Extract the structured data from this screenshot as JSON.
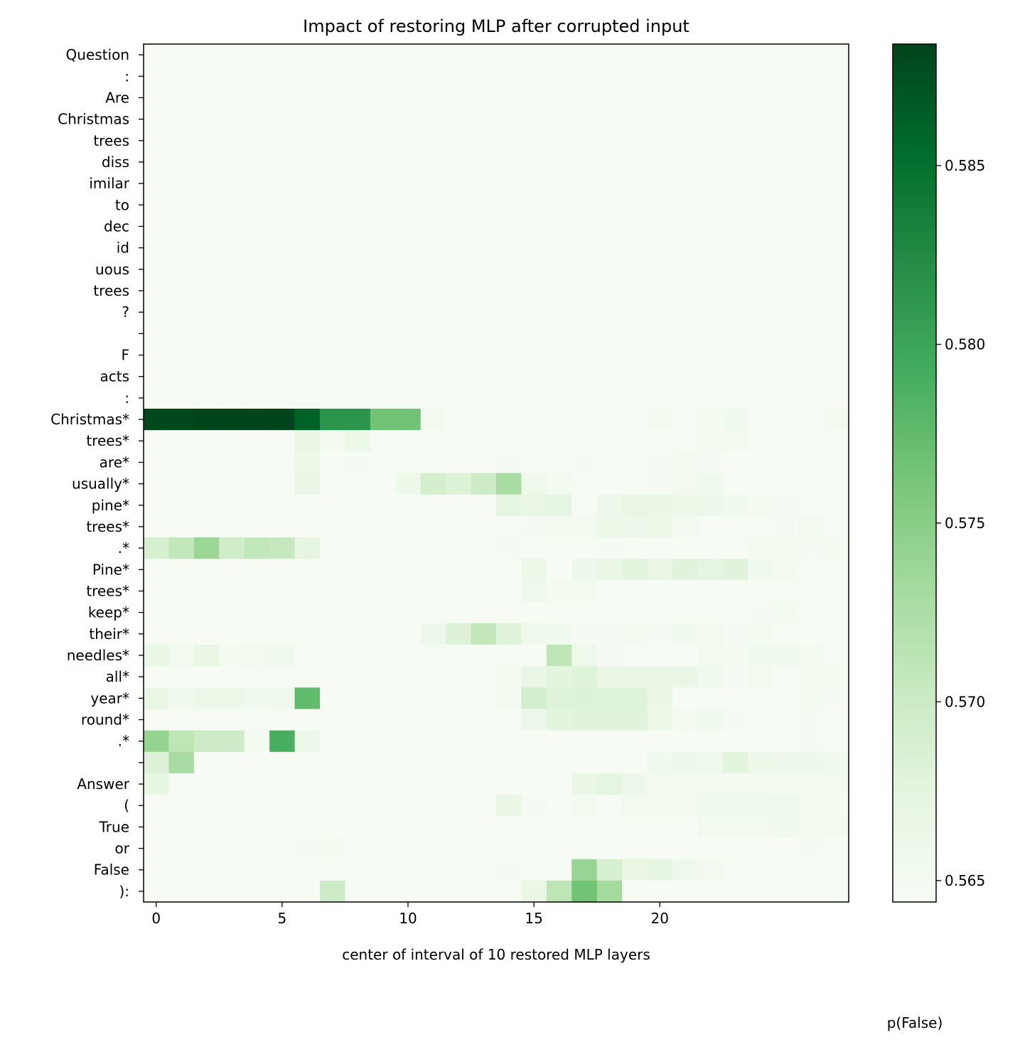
{
  "chart_data": {
    "type": "heatmap",
    "title": "Impact of restoring MLP after corrupted input",
    "xlabel": "center of interval of 10 restored MLP layers",
    "ylabel": "",
    "colorbar_label": "p(False)",
    "colormap": "Greens",
    "color_low": "#f7fcf5",
    "color_high": "#00441b",
    "vmin": 0.5644,
    "vmax": 0.5884,
    "colorbar_ticks": [
      "0.565",
      "0.570",
      "0.575",
      "0.580",
      "0.585"
    ],
    "x": [
      0,
      1,
      2,
      3,
      4,
      5,
      6,
      7,
      8,
      9,
      10,
      11,
      12,
      13,
      14,
      15,
      16,
      17,
      18,
      19,
      20,
      21,
      22,
      23,
      24,
      25,
      26,
      27
    ],
    "xticks": [
      0,
      5,
      10,
      15,
      20
    ],
    "tokens": [
      "Question",
      ":",
      "Are",
      "Christmas",
      "trees",
      "diss",
      "imilar",
      "to",
      "dec",
      "id",
      "uous",
      "trees",
      "?",
      "",
      "F",
      "acts",
      ":",
      "Christmas*",
      "trees*",
      "are*",
      "usually*",
      "pine*",
      "trees*",
      ".*",
      "Pine*",
      "trees*",
      "keep*",
      "their*",
      "needles*",
      "all*",
      "year*",
      "round*",
      ".*",
      "",
      "Answer",
      "(",
      "True",
      "or",
      "False",
      "):"
    ],
    "values": [
      [
        0.5645,
        0.5645,
        0.5645,
        0.5645,
        0.5645,
        0.5645,
        0.5645,
        0.5645,
        0.5645,
        0.5645,
        0.5645,
        0.5645,
        0.5645,
        0.5645,
        0.5645,
        0.5645,
        0.5645,
        0.5645,
        0.5645,
        0.5645,
        0.5645,
        0.5645,
        0.5645,
        0.5645,
        0.5645,
        0.5645,
        0.5645,
        0.5645
      ],
      [
        0.5645,
        0.5645,
        0.5645,
        0.5645,
        0.5645,
        0.5645,
        0.5645,
        0.5645,
        0.5645,
        0.5645,
        0.5645,
        0.5645,
        0.5645,
        0.5645,
        0.5645,
        0.5645,
        0.5645,
        0.5645,
        0.5645,
        0.5645,
        0.5645,
        0.5645,
        0.5645,
        0.5645,
        0.5645,
        0.5645,
        0.5645,
        0.5645
      ],
      [
        0.5645,
        0.5645,
        0.5645,
        0.5645,
        0.5645,
        0.5645,
        0.5645,
        0.5645,
        0.5645,
        0.5645,
        0.5645,
        0.5645,
        0.5645,
        0.5645,
        0.5645,
        0.5645,
        0.5645,
        0.5645,
        0.5645,
        0.5645,
        0.5645,
        0.5645,
        0.5645,
        0.5645,
        0.5645,
        0.5645,
        0.5645,
        0.5645
      ],
      [
        0.5645,
        0.5645,
        0.5645,
        0.5645,
        0.5645,
        0.5645,
        0.5645,
        0.5645,
        0.5645,
        0.5645,
        0.5645,
        0.5645,
        0.5645,
        0.5645,
        0.5645,
        0.5645,
        0.5645,
        0.5645,
        0.5645,
        0.5645,
        0.5645,
        0.5645,
        0.5645,
        0.5645,
        0.5645,
        0.5645,
        0.5645,
        0.5645
      ],
      [
        0.5645,
        0.5645,
        0.5645,
        0.5645,
        0.5645,
        0.5645,
        0.5645,
        0.5645,
        0.5645,
        0.5645,
        0.5645,
        0.5645,
        0.5645,
        0.5645,
        0.5645,
        0.5645,
        0.5645,
        0.5645,
        0.5645,
        0.5645,
        0.5645,
        0.5645,
        0.5645,
        0.5645,
        0.5645,
        0.5645,
        0.5645,
        0.5645
      ],
      [
        0.5645,
        0.5645,
        0.5645,
        0.5645,
        0.5645,
        0.5645,
        0.5645,
        0.5645,
        0.5645,
        0.5645,
        0.5645,
        0.5645,
        0.5645,
        0.5645,
        0.5645,
        0.5645,
        0.5645,
        0.5645,
        0.5645,
        0.5645,
        0.5645,
        0.5645,
        0.5645,
        0.5645,
        0.5645,
        0.5645,
        0.5645,
        0.5645
      ],
      [
        0.5645,
        0.5645,
        0.5645,
        0.5645,
        0.5645,
        0.5645,
        0.5645,
        0.5645,
        0.5645,
        0.5645,
        0.5645,
        0.5645,
        0.5645,
        0.5645,
        0.5645,
        0.5645,
        0.5645,
        0.5645,
        0.5645,
        0.5645,
        0.5645,
        0.5645,
        0.5645,
        0.5645,
        0.5645,
        0.5645,
        0.5645,
        0.5645
      ],
      [
        0.5645,
        0.5645,
        0.5645,
        0.5645,
        0.5645,
        0.5645,
        0.5645,
        0.5645,
        0.5645,
        0.5645,
        0.5645,
        0.5645,
        0.5645,
        0.5645,
        0.5645,
        0.5645,
        0.5645,
        0.5645,
        0.5645,
        0.5645,
        0.5645,
        0.5645,
        0.5645,
        0.5645,
        0.5645,
        0.5645,
        0.5645,
        0.5645
      ],
      [
        0.5645,
        0.5645,
        0.5645,
        0.5645,
        0.5645,
        0.5645,
        0.5645,
        0.5645,
        0.5645,
        0.5645,
        0.5645,
        0.5645,
        0.5645,
        0.5645,
        0.5645,
        0.5645,
        0.5645,
        0.5645,
        0.5645,
        0.5645,
        0.5645,
        0.5645,
        0.5645,
        0.5645,
        0.5645,
        0.5645,
        0.5645,
        0.5645
      ],
      [
        0.5645,
        0.5645,
        0.5645,
        0.5645,
        0.5645,
        0.5645,
        0.5645,
        0.5645,
        0.5645,
        0.5645,
        0.5645,
        0.5645,
        0.5645,
        0.5645,
        0.5645,
        0.5645,
        0.5645,
        0.5645,
        0.5645,
        0.5645,
        0.5645,
        0.5645,
        0.5645,
        0.5645,
        0.5645,
        0.5645,
        0.5645,
        0.5645
      ],
      [
        0.5645,
        0.5645,
        0.5645,
        0.5645,
        0.5645,
        0.5645,
        0.5645,
        0.5645,
        0.5645,
        0.5645,
        0.5645,
        0.5645,
        0.5645,
        0.5645,
        0.5645,
        0.5645,
        0.5645,
        0.5645,
        0.5645,
        0.5645,
        0.5645,
        0.5645,
        0.5645,
        0.5645,
        0.5645,
        0.5645,
        0.5645,
        0.5645
      ],
      [
        0.5645,
        0.5645,
        0.5645,
        0.5645,
        0.5645,
        0.5645,
        0.5645,
        0.5645,
        0.5645,
        0.5645,
        0.5645,
        0.5645,
        0.5645,
        0.5645,
        0.5645,
        0.5645,
        0.5645,
        0.5645,
        0.5645,
        0.5645,
        0.5645,
        0.5645,
        0.5645,
        0.5645,
        0.5645,
        0.5645,
        0.5645,
        0.5645
      ],
      [
        0.5645,
        0.5645,
        0.5645,
        0.5645,
        0.5645,
        0.5645,
        0.5645,
        0.5645,
        0.5645,
        0.5645,
        0.5645,
        0.5645,
        0.5645,
        0.5645,
        0.5645,
        0.5645,
        0.5645,
        0.5645,
        0.5645,
        0.5645,
        0.5645,
        0.5645,
        0.5645,
        0.5645,
        0.5645,
        0.5645,
        0.5645,
        0.5645
      ],
      [
        0.5645,
        0.5645,
        0.5645,
        0.5645,
        0.5645,
        0.5645,
        0.5645,
        0.5645,
        0.5645,
        0.5645,
        0.5645,
        0.5645,
        0.5645,
        0.5645,
        0.5645,
        0.5645,
        0.5645,
        0.5645,
        0.5645,
        0.5645,
        0.5645,
        0.5645,
        0.5645,
        0.5645,
        0.5645,
        0.5645,
        0.5645,
        0.5645
      ],
      [
        0.5645,
        0.5645,
        0.5645,
        0.5645,
        0.5645,
        0.5645,
        0.5645,
        0.5645,
        0.5645,
        0.5645,
        0.5645,
        0.5645,
        0.5645,
        0.5645,
        0.5645,
        0.5645,
        0.5645,
        0.5645,
        0.5645,
        0.5645,
        0.5645,
        0.5645,
        0.5645,
        0.5645,
        0.5645,
        0.5645,
        0.5645,
        0.5645
      ],
      [
        0.5645,
        0.5645,
        0.5645,
        0.5645,
        0.5645,
        0.5645,
        0.5645,
        0.5645,
        0.5645,
        0.5645,
        0.5645,
        0.5645,
        0.5645,
        0.5645,
        0.5645,
        0.5645,
        0.5645,
        0.5645,
        0.5645,
        0.5645,
        0.5645,
        0.5645,
        0.5645,
        0.5645,
        0.5645,
        0.5645,
        0.5645,
        0.5645
      ],
      [
        0.5645,
        0.5645,
        0.5645,
        0.5645,
        0.5645,
        0.5645,
        0.5645,
        0.5645,
        0.5645,
        0.5645,
        0.5645,
        0.5645,
        0.5645,
        0.5645,
        0.5645,
        0.5645,
        0.5645,
        0.5645,
        0.5645,
        0.5645,
        0.5645,
        0.5645,
        0.5645,
        0.5645,
        0.5645,
        0.5645,
        0.5645,
        0.5645
      ],
      [
        0.5882,
        0.5882,
        0.5884,
        0.5885,
        0.5883,
        0.5885,
        0.5862,
        0.5815,
        0.5815,
        0.5765,
        0.5765,
        0.5652,
        0.5645,
        0.5645,
        0.5645,
        0.5645,
        0.5645,
        0.5645,
        0.5645,
        0.5645,
        0.5652,
        0.5645,
        0.565,
        0.5655,
        0.5645,
        0.5645,
        0.5645,
        0.5652
      ],
      [
        0.5645,
        0.5645,
        0.5645,
        0.5645,
        0.5645,
        0.5645,
        0.5668,
        0.5652,
        0.5662,
        0.5645,
        0.5645,
        0.5645,
        0.5645,
        0.5645,
        0.5645,
        0.5645,
        0.5645,
        0.5645,
        0.5645,
        0.5645,
        0.5645,
        0.5645,
        0.565,
        0.5652,
        0.5645,
        0.5645,
        0.5645,
        0.5645
      ],
      [
        0.5645,
        0.5645,
        0.5645,
        0.5645,
        0.5645,
        0.5645,
        0.5662,
        0.5645,
        0.5648,
        0.5645,
        0.5645,
        0.5645,
        0.5645,
        0.5645,
        0.5648,
        0.5645,
        0.5645,
        0.5648,
        0.5645,
        0.5645,
        0.5648,
        0.565,
        0.5648,
        0.5645,
        0.5645,
        0.5645,
        0.5645,
        0.5645
      ],
      [
        0.5645,
        0.5645,
        0.5645,
        0.5645,
        0.5645,
        0.5645,
        0.5665,
        0.5645,
        0.5645,
        0.5645,
        0.5662,
        0.5692,
        0.5682,
        0.5698,
        0.5728,
        0.5658,
        0.565,
        0.5645,
        0.5645,
        0.5645,
        0.5648,
        0.5652,
        0.5655,
        0.5645,
        0.5645,
        0.5645,
        0.5645,
        0.5645
      ],
      [
        0.5645,
        0.5645,
        0.5645,
        0.5645,
        0.5645,
        0.5645,
        0.5645,
        0.5645,
        0.5645,
        0.5645,
        0.5645,
        0.5645,
        0.5645,
        0.5645,
        0.5672,
        0.5668,
        0.5672,
        0.5645,
        0.566,
        0.5668,
        0.5665,
        0.5662,
        0.566,
        0.5655,
        0.565,
        0.5648,
        0.5645,
        0.5645
      ],
      [
        0.5645,
        0.5645,
        0.5645,
        0.5645,
        0.5645,
        0.5645,
        0.5645,
        0.5645,
        0.5645,
        0.5645,
        0.5645,
        0.5645,
        0.5645,
        0.5645,
        0.5645,
        0.5648,
        0.5652,
        0.5652,
        0.5662,
        0.566,
        0.5662,
        0.5652,
        0.5645,
        0.5645,
        0.5645,
        0.5648,
        0.5652,
        0.5645
      ],
      [
        0.569,
        0.5708,
        0.5738,
        0.5695,
        0.5708,
        0.5705,
        0.5672,
        0.5645,
        0.5645,
        0.5645,
        0.5645,
        0.5645,
        0.5645,
        0.5645,
        0.5648,
        0.5645,
        0.5645,
        0.5645,
        0.5648,
        0.5645,
        0.5645,
        0.5645,
        0.5645,
        0.5645,
        0.565,
        0.5652,
        0.5648,
        0.565
      ],
      [
        0.5645,
        0.5645,
        0.5645,
        0.5645,
        0.5645,
        0.5645,
        0.5645,
        0.5645,
        0.5645,
        0.5645,
        0.5645,
        0.5645,
        0.5645,
        0.5645,
        0.5645,
        0.5662,
        0.5645,
        0.566,
        0.5665,
        0.5675,
        0.5668,
        0.5678,
        0.5672,
        0.5678,
        0.5655,
        0.565,
        0.5645,
        0.5645
      ],
      [
        0.5645,
        0.5645,
        0.5645,
        0.5645,
        0.5645,
        0.5645,
        0.5645,
        0.5645,
        0.5645,
        0.5645,
        0.5645,
        0.5645,
        0.5645,
        0.5645,
        0.5645,
        0.5658,
        0.565,
        0.5652,
        0.5645,
        0.5645,
        0.5645,
        0.5645,
        0.5645,
        0.5645,
        0.5645,
        0.5645,
        0.5645,
        0.5645
      ],
      [
        0.5645,
        0.5645,
        0.5645,
        0.5645,
        0.5645,
        0.5645,
        0.5645,
        0.5645,
        0.5645,
        0.5645,
        0.5645,
        0.5645,
        0.5645,
        0.5645,
        0.5645,
        0.5645,
        0.5645,
        0.5645,
        0.5645,
        0.5645,
        0.5645,
        0.5645,
        0.5645,
        0.5645,
        0.5648,
        0.565,
        0.5645,
        0.5645
      ],
      [
        0.5645,
        0.5645,
        0.5645,
        0.5645,
        0.5645,
        0.5645,
        0.5645,
        0.5645,
        0.5645,
        0.5645,
        0.5645,
        0.566,
        0.5682,
        0.5708,
        0.568,
        0.5658,
        0.5655,
        0.5648,
        0.5648,
        0.565,
        0.5648,
        0.5655,
        0.5652,
        0.5648,
        0.565,
        0.5645,
        0.5645,
        0.5645
      ],
      [
        0.5665,
        0.5652,
        0.5668,
        0.565,
        0.5652,
        0.5655,
        0.5645,
        0.5645,
        0.5645,
        0.5645,
        0.5645,
        0.5645,
        0.5645,
        0.5645,
        0.5645,
        0.5645,
        0.5712,
        0.5658,
        0.5648,
        0.5645,
        0.5645,
        0.5645,
        0.5652,
        0.565,
        0.5655,
        0.5655,
        0.565,
        0.5645
      ],
      [
        0.5645,
        0.5645,
        0.5645,
        0.5645,
        0.5645,
        0.5645,
        0.5645,
        0.5645,
        0.5645,
        0.5645,
        0.5645,
        0.5645,
        0.5645,
        0.5645,
        0.565,
        0.5665,
        0.5675,
        0.568,
        0.5668,
        0.5668,
        0.5668,
        0.5665,
        0.5655,
        0.5648,
        0.5652,
        0.5645,
        0.5652,
        0.565
      ],
      [
        0.5668,
        0.5655,
        0.5662,
        0.5662,
        0.5655,
        0.5658,
        0.5775,
        0.5645,
        0.5645,
        0.5645,
        0.5645,
        0.5645,
        0.5645,
        0.5645,
        0.5652,
        0.5692,
        0.568,
        0.5682,
        0.568,
        0.568,
        0.5665,
        0.5645,
        0.5645,
        0.5645,
        0.5645,
        0.5645,
        0.565,
        0.5648
      ],
      [
        0.5645,
        0.5645,
        0.5645,
        0.5645,
        0.5645,
        0.5645,
        0.5645,
        0.5645,
        0.5645,
        0.5645,
        0.5645,
        0.5645,
        0.5645,
        0.5645,
        0.5645,
        0.566,
        0.5675,
        0.5678,
        0.5678,
        0.5678,
        0.5662,
        0.5652,
        0.5655,
        0.5648,
        0.5645,
        0.5645,
        0.5648,
        0.5645
      ],
      [
        0.5742,
        0.5712,
        0.5698,
        0.5698,
        0.565,
        0.579,
        0.566,
        0.5645,
        0.5645,
        0.5645,
        0.5645,
        0.5645,
        0.5645,
        0.5645,
        0.5645,
        0.5645,
        0.5645,
        0.5645,
        0.5645,
        0.5645,
        0.5645,
        0.5645,
        0.5645,
        0.5645,
        0.5645,
        0.5645,
        0.5648,
        0.5645
      ],
      [
        0.5682,
        0.5728,
        0.5645,
        0.5645,
        0.5645,
        0.5645,
        0.5645,
        0.5645,
        0.5645,
        0.5645,
        0.5645,
        0.5645,
        0.5645,
        0.5645,
        0.5645,
        0.5645,
        0.5645,
        0.5645,
        0.5645,
        0.5645,
        0.5655,
        0.566,
        0.5658,
        0.5675,
        0.5662,
        0.566,
        0.566,
        0.5655
      ],
      [
        0.567,
        0.5645,
        0.5645,
        0.5645,
        0.5645,
        0.5645,
        0.5645,
        0.5645,
        0.5645,
        0.5645,
        0.5645,
        0.5645,
        0.5645,
        0.5645,
        0.5645,
        0.5645,
        0.5645,
        0.5665,
        0.5672,
        0.566,
        0.565,
        0.565,
        0.565,
        0.565,
        0.565,
        0.565,
        0.565,
        0.5652
      ],
      [
        0.5645,
        0.5645,
        0.5645,
        0.5645,
        0.5645,
        0.5645,
        0.5645,
        0.5645,
        0.5645,
        0.5645,
        0.5645,
        0.5645,
        0.5645,
        0.5645,
        0.5665,
        0.5648,
        0.5645,
        0.565,
        0.5645,
        0.5652,
        0.5652,
        0.5652,
        0.5655,
        0.5655,
        0.5655,
        0.5658,
        0.5652,
        0.565
      ],
      [
        0.5645,
        0.5645,
        0.5645,
        0.5645,
        0.5645,
        0.5645,
        0.5645,
        0.5645,
        0.5645,
        0.5645,
        0.5645,
        0.5645,
        0.5645,
        0.5645,
        0.5645,
        0.5645,
        0.5645,
        0.5645,
        0.5645,
        0.5645,
        0.5645,
        0.5645,
        0.5652,
        0.5652,
        0.5652,
        0.5655,
        0.5652,
        0.5652
      ],
      [
        0.5645,
        0.5645,
        0.5645,
        0.5645,
        0.5645,
        0.5645,
        0.5648,
        0.565,
        0.5645,
        0.5645,
        0.5645,
        0.5645,
        0.5645,
        0.5645,
        0.5645,
        0.5645,
        0.5645,
        0.5645,
        0.5645,
        0.5645,
        0.5645,
        0.5645,
        0.5645,
        0.5645,
        0.5645,
        0.5645,
        0.5648,
        0.5645
      ],
      [
        0.5645,
        0.5645,
        0.5645,
        0.5645,
        0.5645,
        0.5645,
        0.5645,
        0.5645,
        0.5645,
        0.5645,
        0.5645,
        0.5645,
        0.5645,
        0.5645,
        0.5648,
        0.5645,
        0.5645,
        0.574,
        0.569,
        0.5668,
        0.567,
        0.5658,
        0.5652,
        0.5645,
        0.5645,
        0.5645,
        0.5645,
        0.5645
      ],
      [
        0.5645,
        0.5645,
        0.5645,
        0.5645,
        0.5645,
        0.5645,
        0.5645,
        0.5698,
        0.5645,
        0.5645,
        0.5645,
        0.5645,
        0.5645,
        0.5645,
        0.5645,
        0.5665,
        0.5712,
        0.5765,
        0.5732,
        0.5645,
        0.5645,
        0.5645,
        0.5645,
        0.5645,
        0.5645,
        0.5645,
        0.5645,
        0.5645
      ]
    ]
  }
}
